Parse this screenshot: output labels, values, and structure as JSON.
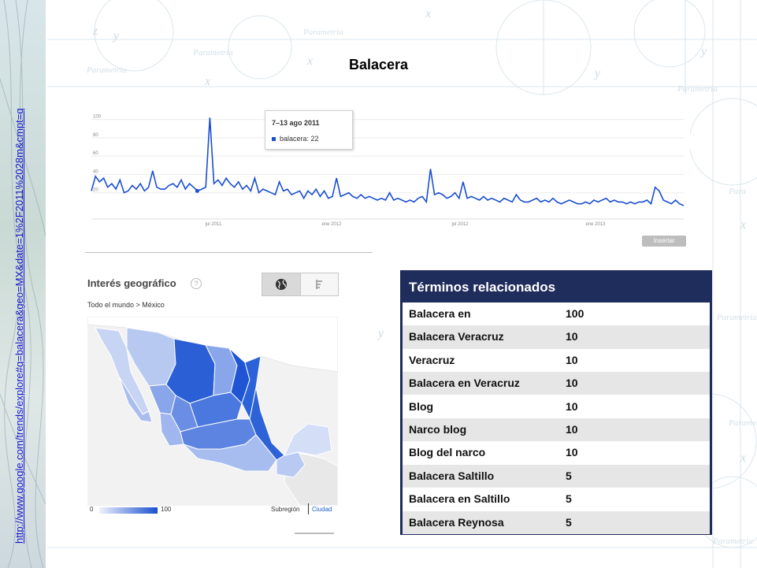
{
  "slide": {
    "title": "Balacera",
    "vertical_link": "http://www.google.com/trends/explore#q=balacera&geo=MX&date=1%2F2011%2028m&cmpt=q",
    "watermark": "Parametria"
  },
  "chart": {
    "tooltip_date": "7–13 ago 2011",
    "tooltip_series": "balacera: 22",
    "insert_label": "Insertar",
    "y_ticks": [
      "100",
      "80",
      "60",
      "40",
      "20"
    ],
    "x_ticks": [
      "jul 2011",
      "ene 2012",
      "jul 2012",
      "ene 2013"
    ]
  },
  "chart_data": {
    "type": "line",
    "series": [
      {
        "color": "#1a4fd0",
        "values": [
          22,
          38,
          32,
          36,
          26,
          30,
          24,
          34,
          20,
          22,
          28,
          24,
          30,
          22,
          26,
          44,
          26,
          24,
          24,
          28,
          30,
          26,
          34,
          24,
          30,
          26,
          22,
          24,
          26,
          102,
          30,
          34,
          28,
          36,
          30,
          26,
          32,
          24,
          28,
          22,
          36,
          20,
          24,
          22,
          20,
          18,
          32,
          22,
          24,
          18,
          20,
          22,
          14,
          22,
          18,
          24,
          16,
          22,
          14,
          16,
          36,
          16,
          18,
          20,
          16,
          14,
          18,
          14,
          16,
          14,
          12,
          14,
          12,
          20,
          12,
          14,
          12,
          10,
          12,
          10,
          14,
          16,
          10,
          46,
          18,
          20,
          18,
          14,
          16,
          20,
          14,
          32,
          14,
          16,
          14,
          12,
          16,
          12,
          14,
          12,
          10,
          14,
          12,
          10,
          18,
          12,
          10,
          10,
          12,
          14,
          10,
          12,
          10,
          14,
          10,
          8,
          10,
          12,
          10,
          8,
          8,
          10,
          8,
          12,
          10,
          12,
          14,
          10,
          12,
          10,
          10,
          8,
          10,
          8,
          10,
          10,
          12,
          8,
          26,
          22,
          12,
          10,
          8,
          12,
          8,
          6
        ]
      }
    ],
    "y_ticks": [
      100,
      80,
      60,
      40,
      20
    ],
    "ylim": [
      0,
      110
    ],
    "x_tick_labels": [
      "jul 2011",
      "ene 2012",
      "jul 2012",
      "ene 2013"
    ],
    "grid": true
  },
  "geo": {
    "title": "Interés geográfico",
    "help": "?",
    "breadcrumb": "Todo el mundo > México",
    "legend_min": "0",
    "legend_max": "100",
    "region_option": "Subregión",
    "city_option": "Ciudad",
    "scale_colors": [
      "#eef2fc",
      "#1a4fd0"
    ]
  },
  "terms": {
    "header": "Términos relacionados",
    "rows": [
      {
        "term": "Balacera en",
        "value": "100"
      },
      {
        "term": "Balacera Veracruz",
        "value": "10"
      },
      {
        "term": "Veracruz",
        "value": "10"
      },
      {
        "term": "Balacera en Veracruz",
        "value": "10"
      },
      {
        "term": "Blog",
        "value": "10"
      },
      {
        "term": "Narco blog",
        "value": "10"
      },
      {
        "term": "Blog del narco",
        "value": "10"
      },
      {
        "term": "Balacera Saltillo",
        "value": "5"
      },
      {
        "term": "Balacera en Saltillo",
        "value": "5"
      },
      {
        "term": "Balacera Reynosa",
        "value": "5"
      }
    ]
  },
  "colors": {
    "table_header": "#1f2d5c",
    "line": "#1a4fd0",
    "link": "#1515cc"
  }
}
